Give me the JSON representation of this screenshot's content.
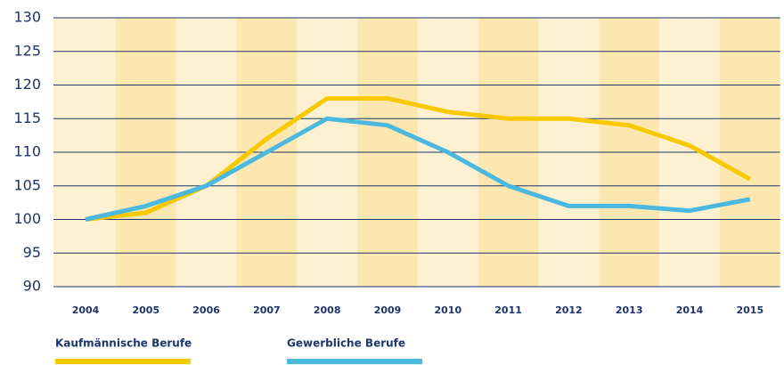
{
  "chart_data": {
    "type": "line",
    "categories": [
      "2004",
      "2005",
      "2006",
      "2007",
      "2008",
      "2009",
      "2010",
      "2011",
      "2012",
      "2013",
      "2014",
      "2015"
    ],
    "series": [
      {
        "name": "Kaufmännische Berufe",
        "color": "#f9c900",
        "values": [
          100,
          101,
          105,
          112,
          118,
          118,
          116,
          115,
          115,
          114,
          111,
          106
        ]
      },
      {
        "name": "Gewerbliche Berufe",
        "color": "#4bb8e0",
        "values": [
          100,
          102,
          105,
          110,
          115,
          114,
          110,
          105,
          102,
          102,
          101.3,
          103
        ]
      }
    ],
    "ylim": [
      90,
      130
    ],
    "yticks": [
      90,
      95,
      100,
      105,
      110,
      115,
      120,
      125,
      130
    ],
    "grid": true
  }
}
